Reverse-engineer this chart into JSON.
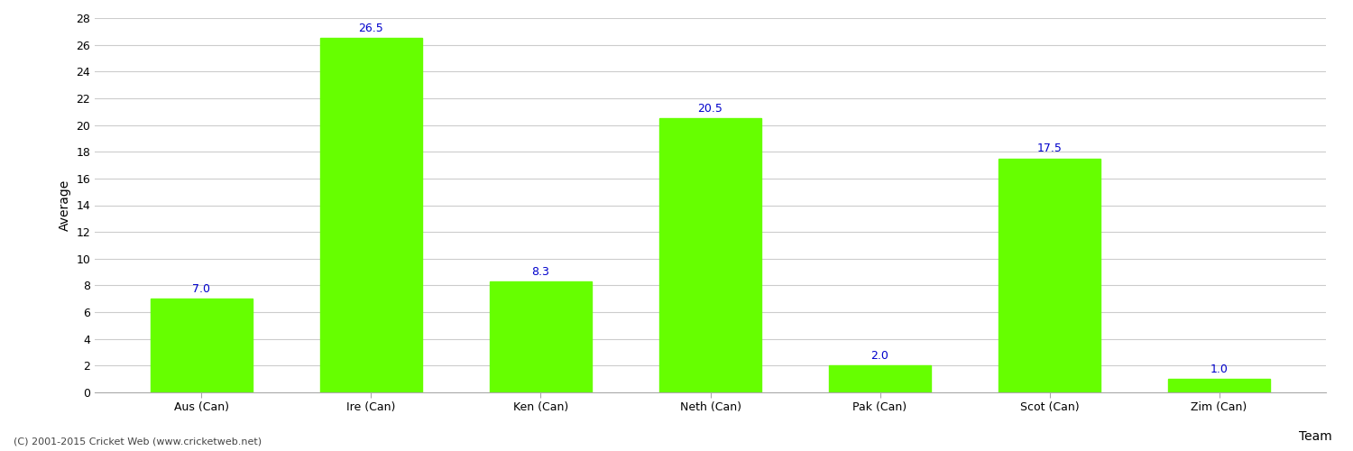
{
  "categories": [
    "Aus (Can)",
    "Ire (Can)",
    "Ken (Can)",
    "Neth (Can)",
    "Pak (Can)",
    "Scot (Can)",
    "Zim (Can)"
  ],
  "values": [
    7.0,
    26.5,
    8.3,
    20.5,
    2.0,
    17.5,
    1.0
  ],
  "bar_color": "#66ff00",
  "bar_edge_color": "#66ff00",
  "label_color": "#0000cc",
  "label_fontsize": 9,
  "xlabel": "Team",
  "ylabel": "Average",
  "ylim": [
    0,
    28
  ],
  "yticks": [
    0,
    2,
    4,
    6,
    8,
    10,
    12,
    14,
    16,
    18,
    20,
    22,
    24,
    26,
    28
  ],
  "grid_color": "#cccccc",
  "background_color": "#ffffff",
  "footer_text": "(C) 2001-2015 Cricket Web (www.cricketweb.net)",
  "footer_fontsize": 8,
  "footer_color": "#444444",
  "axis_label_fontsize": 10,
  "tick_fontsize": 9,
  "bar_width": 0.6
}
